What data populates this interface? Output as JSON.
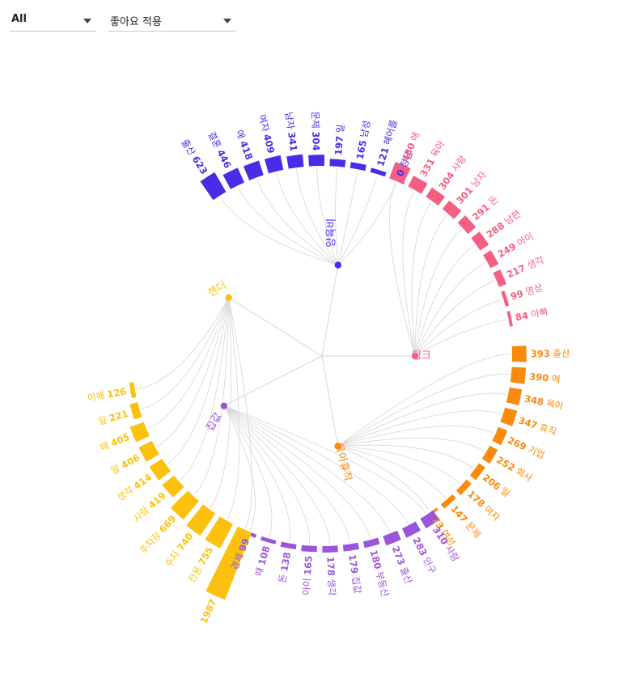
{
  "controls": {
    "category_select": {
      "value": "All",
      "icon": "chevron-down-icon"
    },
    "mode_select": {
      "value": "좋아요 적용",
      "icon": "chevron-down-icon"
    }
  },
  "chart_data": {
    "type": "radial-bar",
    "groups": [
      {
        "name": "양육비",
        "color": "#4a2be6",
        "items": [
          {
            "word": "출산",
            "value": 623
          },
          {
            "word": "결혼",
            "value": 446
          },
          {
            "word": "애",
            "value": 418
          },
          {
            "word": "여자",
            "value": 409
          },
          {
            "word": "남자",
            "value": 341
          },
          {
            "word": "문제",
            "value": 304
          },
          {
            "word": "일",
            "value": 197
          },
          {
            "word": "남성",
            "value": 165
          },
          {
            "word": "혜어를",
            "value": 121
          },
          {
            "word": "정답",
            "value": 0
          }
        ]
      },
      {
        "name": "딩크",
        "color": "#f45f82",
        "items": [
          {
            "word": "애",
            "value": 480
          },
          {
            "word": "육아",
            "value": 331
          },
          {
            "word": "사람",
            "value": 304
          },
          {
            "word": "남자",
            "value": 301
          },
          {
            "word": "돈",
            "value": 291
          },
          {
            "word": "남편",
            "value": 288
          },
          {
            "word": "아이",
            "value": 249
          },
          {
            "word": "생각",
            "value": 217
          },
          {
            "word": "영상",
            "value": 99
          },
          {
            "word": "아빠",
            "value": 84
          }
        ]
      },
      {
        "name": "육아휴직",
        "color": "#f98a0b",
        "items": [
          {
            "word": "출산",
            "value": 393
          },
          {
            "word": "애",
            "value": 390
          },
          {
            "word": "육아",
            "value": 348
          },
          {
            "word": "휴직",
            "value": 347
          },
          {
            "word": "기업",
            "value": 269
          },
          {
            "word": "회사",
            "value": 252
          },
          {
            "word": "일",
            "value": 206
          },
          {
            "word": "여자",
            "value": 178
          },
          {
            "word": "문제",
            "value": 147
          },
          {
            "word": "여성",
            "value": 73
          }
        ]
      },
      {
        "name": "집값",
        "color": "#9b55da",
        "items": [
          {
            "word": "사람",
            "value": 310
          },
          {
            "word": "인구",
            "value": 283
          },
          {
            "word": "출산",
            "value": 273
          },
          {
            "word": "부동산",
            "value": 180
          },
          {
            "word": "집값",
            "value": 179
          },
          {
            "word": "생각",
            "value": 178
          },
          {
            "word": "아이",
            "value": 165
          },
          {
            "word": "돈",
            "value": 138
          },
          {
            "word": "때",
            "value": 108
          },
          {
            "word": "경제",
            "value": 99
          }
        ]
      },
      {
        "name": "젠더",
        "color": "#fbc10e",
        "items": [
          {
            "word": "",
            "value": 1987
          },
          {
            "word": "전용",
            "value": 755
          },
          {
            "word": "주차",
            "value": 740
          },
          {
            "word": "주차장",
            "value": 669
          },
          {
            "word": "사람",
            "value": 419
          },
          {
            "word": "생각",
            "value": 414
          },
          {
            "word": "말",
            "value": 406
          },
          {
            "word": "때",
            "value": 405
          },
          {
            "word": "일",
            "value": 221
          },
          {
            "word": "이혜",
            "value": 126
          }
        ]
      }
    ]
  }
}
